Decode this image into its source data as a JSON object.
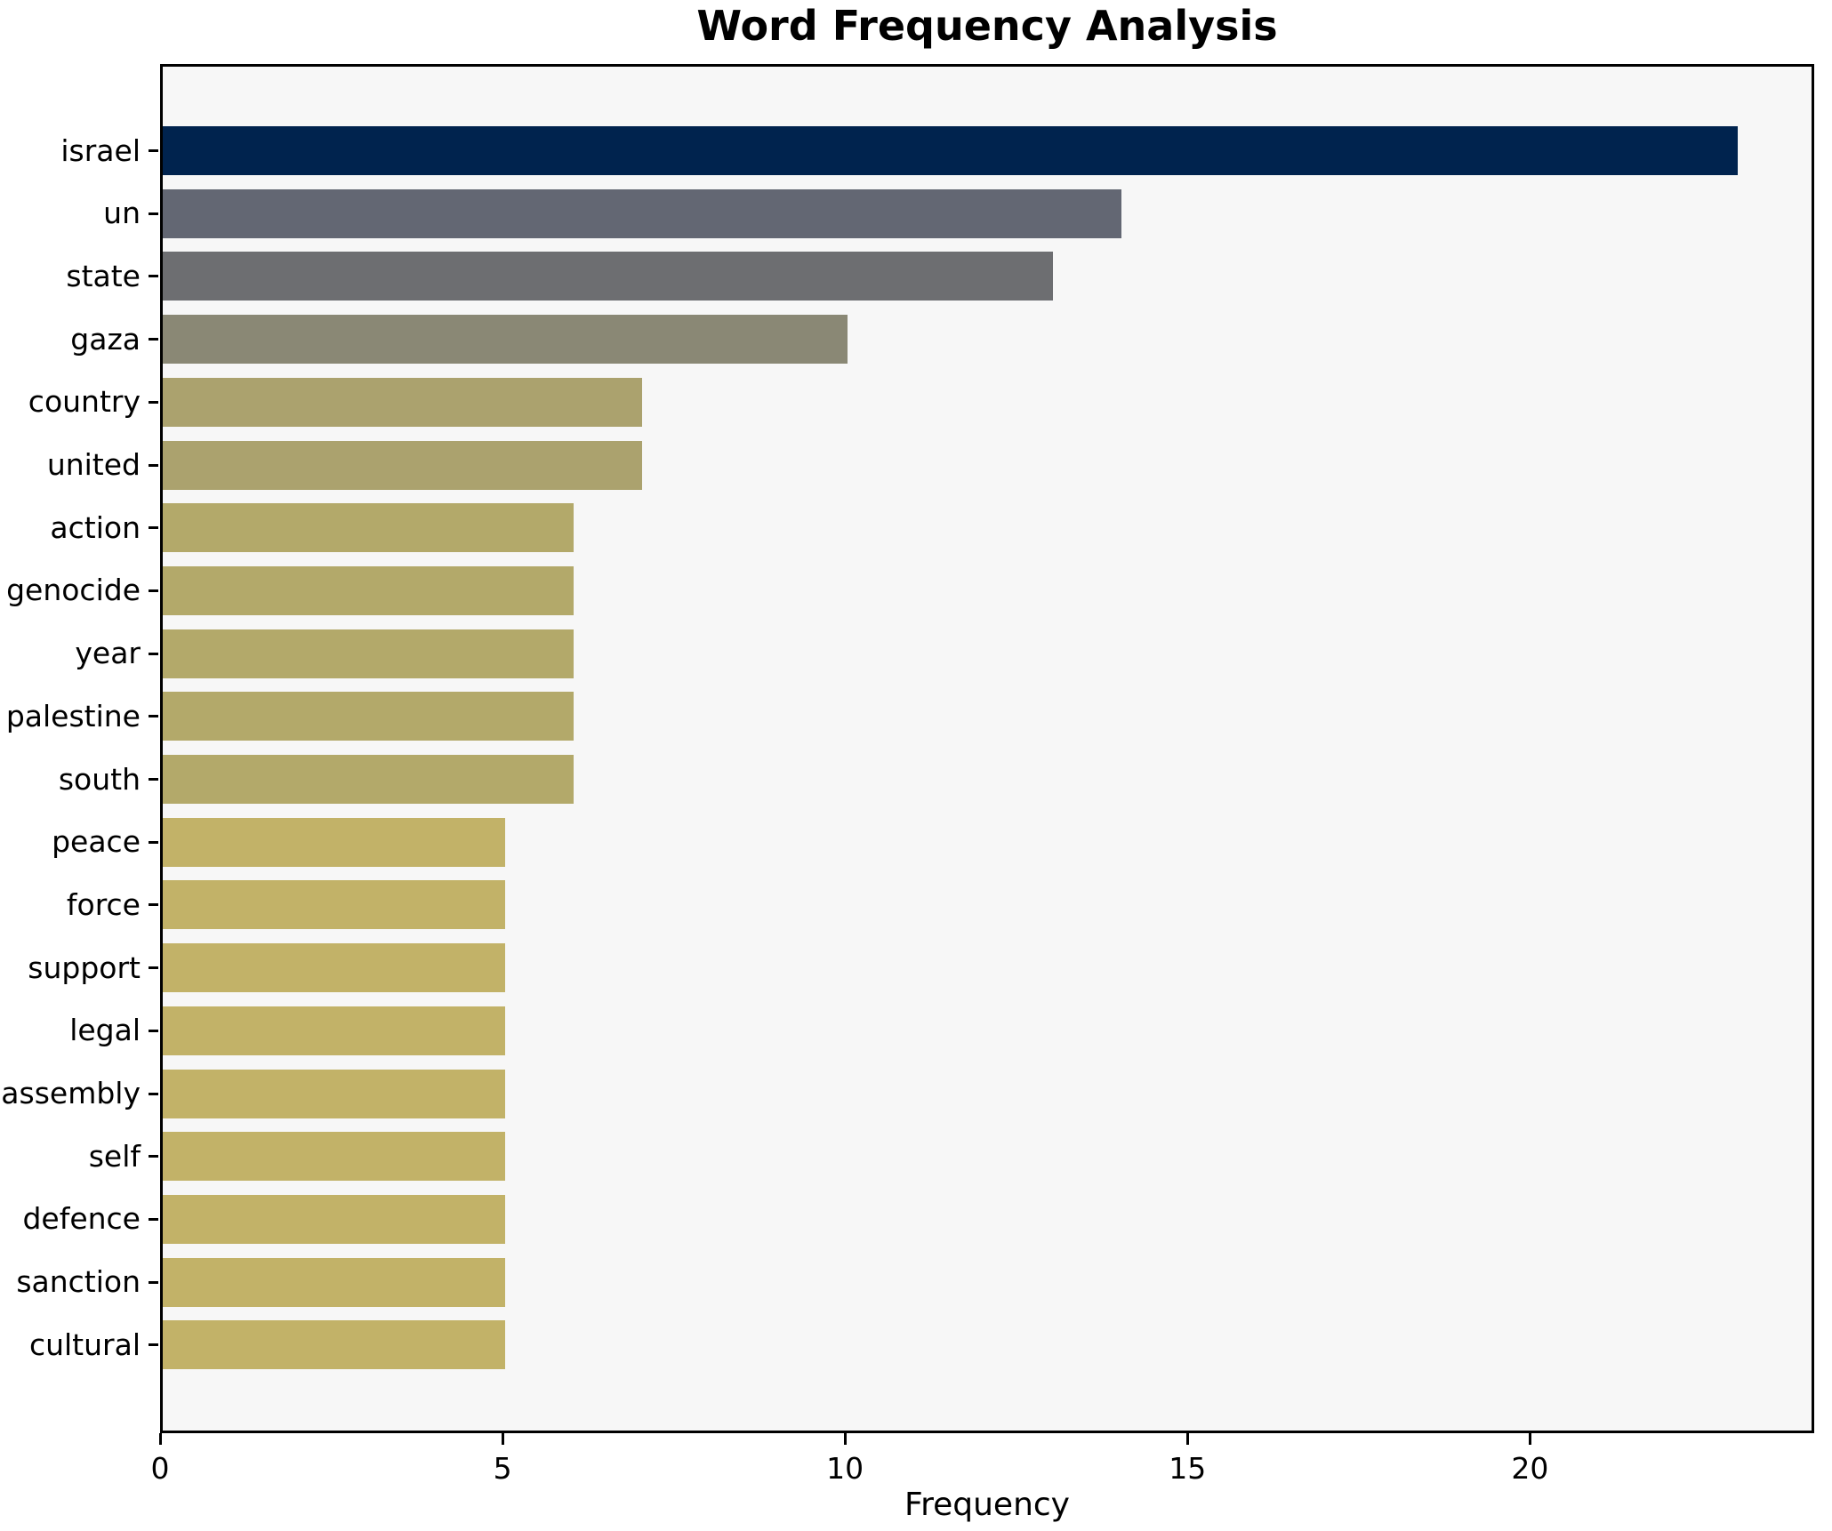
{
  "chart_data": {
    "type": "bar",
    "orientation": "horizontal",
    "title": "Word Frequency Analysis",
    "xlabel": "Frequency",
    "ylabel": "",
    "categories": [
      "israel",
      "un",
      "state",
      "gaza",
      "country",
      "united",
      "action",
      "genocide",
      "year",
      "palestine",
      "south",
      "peace",
      "force",
      "support",
      "legal",
      "assembly",
      "self",
      "defence",
      "sanction",
      "cultural"
    ],
    "values": [
      23,
      14,
      13,
      10,
      7,
      7,
      6,
      6,
      6,
      6,
      6,
      5,
      5,
      5,
      5,
      5,
      5,
      5,
      5,
      5
    ],
    "bar_colors": [
      "#00234e",
      "#636773",
      "#6d6e71",
      "#8a8875",
      "#aba26e",
      "#aba26e",
      "#b3a96a",
      "#b3a96a",
      "#b3a96a",
      "#b3a96a",
      "#b3a96a",
      "#c2b268",
      "#c2b268",
      "#c2b268",
      "#c2b268",
      "#c2b268",
      "#c2b268",
      "#c2b268",
      "#c2b268",
      "#c2b268"
    ],
    "x_ticks": [
      0,
      5,
      10,
      15,
      20
    ],
    "xlim": [
      0,
      24.15
    ],
    "grid": false,
    "legend": false,
    "colors": {
      "figure_bg": "#ffffff",
      "plot_bg": "#f7f7f7",
      "spine": "#000000",
      "text": "#000000"
    }
  }
}
